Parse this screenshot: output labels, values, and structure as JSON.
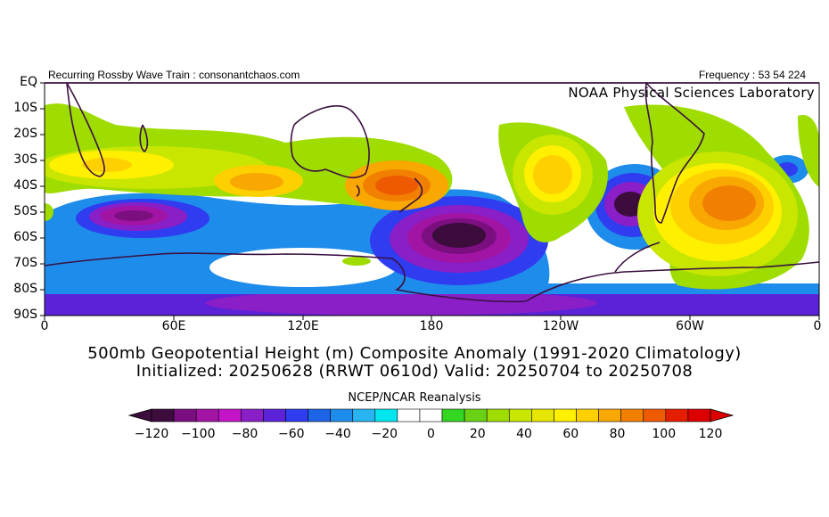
{
  "header": {
    "left_text": "Recurring Rossby Wave Train : consonantchaos.com",
    "right_text": "Frequency : 53 54 224",
    "lab_text": "NOAA Physical Sciences Laboratory"
  },
  "map": {
    "projection": "equirectangular",
    "lon_range": [
      0,
      360
    ],
    "lat_range": [
      0,
      -90
    ],
    "lat_labels": [
      "EQ",
      "10S",
      "20S",
      "30S",
      "40S",
      "50S",
      "60S",
      "70S",
      "80S",
      "90S"
    ],
    "lon_labels": [
      "0",
      "60E",
      "120E",
      "180",
      "120W",
      "60W",
      "0"
    ],
    "variable": "500mb geopotential height composite anomaly",
    "units": "m",
    "features": [
      {
        "type": "positive",
        "level": 60,
        "center_lon": 40,
        "center_lat": -31
      },
      {
        "type": "positive",
        "level": 80,
        "center_lon": 100,
        "center_lat": -39
      },
      {
        "type": "positive",
        "level": 100,
        "center_lon": 160,
        "center_lat": -40
      },
      {
        "type": "positive",
        "level": 80,
        "center_lon": 250,
        "center_lat": -35
      },
      {
        "type": "positive",
        "level": 100,
        "center_lon": 320,
        "center_lat": -48
      },
      {
        "type": "negative",
        "level": -100,
        "center_lon": 45,
        "center_lat": -52
      },
      {
        "type": "negative",
        "level": -120,
        "center_lon": 190,
        "center_lat": -58
      },
      {
        "type": "negative",
        "level": -120,
        "center_lon": 278,
        "center_lat": -47
      },
      {
        "type": "negative",
        "level": -60,
        "center_lon": 345,
        "center_lat": -35
      }
    ]
  },
  "titles": {
    "line1": "500mb Geopotential Height (m) Composite Anomaly (1991-2020 Climatology)",
    "line2": "Initialized: 20250628 (RRWT 0610d) Valid: 20250704 to 20250708",
    "source": "NCEP/NCAR Reanalysis"
  },
  "colorbar": {
    "labels": [
      "-120",
      "-100",
      "-80",
      "-60",
      "-40",
      "-20",
      "0",
      "20",
      "40",
      "60",
      "80",
      "100",
      "120"
    ],
    "colors": [
      "#3c0c3c",
      "#7b0f80",
      "#a114a4",
      "#c314c8",
      "#8a1fc8",
      "#5b22d8",
      "#2f3cf0",
      "#1e64e6",
      "#1e8ceb",
      "#28b4f0",
      "#00e6ef",
      "#ffffff",
      "#ffffff",
      "#33d620",
      "#6ad216",
      "#9fdc00",
      "#c8e600",
      "#e6e600",
      "#fff000",
      "#fed000",
      "#f8a800",
      "#f28000",
      "#ee5a00",
      "#e61e00",
      "#dc0000"
    ],
    "low_extend_color": "#3c0c3c",
    "high_extend_color": "#dc0000"
  }
}
